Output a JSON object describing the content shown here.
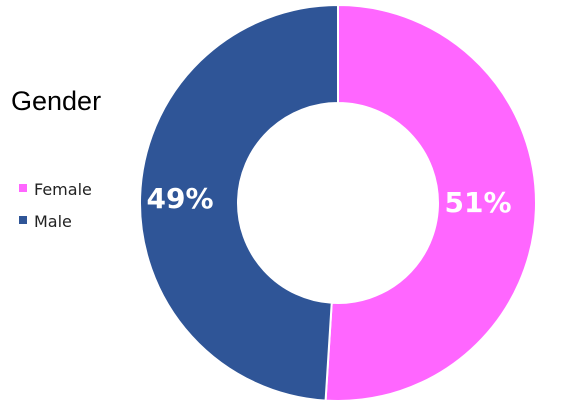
{
  "chart_data": {
    "type": "pie",
    "variant": "donut",
    "title": "Gender",
    "categories": [
      "Female",
      "Male"
    ],
    "values": [
      51,
      49
    ],
    "data_labels": [
      "51%",
      "49%"
    ],
    "colors": [
      "#ff66ff",
      "#2f5597"
    ],
    "legend_placement": "left",
    "start_angle": "top, clockwise"
  }
}
